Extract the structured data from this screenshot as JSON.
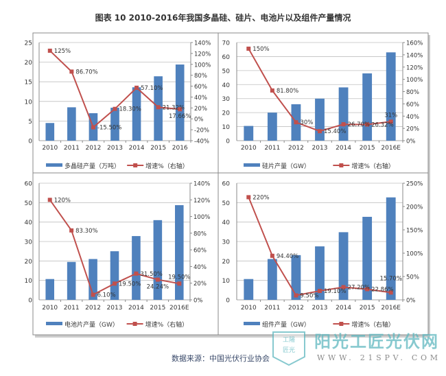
{
  "title": "图表 10  2010-2016年我国多晶硅、硅片、电池片以及组件产量情况",
  "source": "数据来源：中国光伏行业协会",
  "watermark": {
    "name": "阳光工匠光伏网",
    "url": "WWW. 21SPV. COM",
    "badge": [
      "工陽",
      "匠光"
    ]
  },
  "colors": {
    "bar": "#4f81bd",
    "line": "#c0504d",
    "grid": "#bfbfbf"
  },
  "chart_data": [
    {
      "type": "bar+line",
      "categories": [
        "2010",
        "2011",
        "2012",
        "2013",
        "2014",
        "2015",
        "2016"
      ],
      "series": [
        {
          "name": "多晶硅产量（万吨）",
          "type": "bar",
          "axis": "left",
          "values": [
            4.5,
            8.5,
            7.0,
            8.4,
            13.6,
            16.4,
            19.4
          ]
        },
        {
          "name": "增速%（右轴）",
          "type": "line",
          "axis": "right",
          "values": [
            125,
            86.7,
            -15.5,
            18.3,
            57.1,
            21.32,
            17.66
          ],
          "labels": [
            "125%",
            "86.70%",
            "-15.50%",
            "18.30%",
            "57.10%",
            "21.32%",
            "17.66%"
          ]
        }
      ],
      "ylim": [
        0,
        25
      ],
      "yticks": [
        "0",
        "5",
        "10",
        "15",
        "20",
        "25"
      ],
      "y2lim": [
        -40,
        140
      ],
      "y2ticks": [
        "-40%",
        "-20%",
        "0%",
        "20%",
        "40%",
        "60%",
        "80%",
        "100%",
        "120%",
        "140%"
      ],
      "grid": true,
      "legend": "bottom"
    },
    {
      "type": "bar+line",
      "categories": [
        "2010",
        "2011",
        "2012",
        "2013",
        "2014",
        "2015",
        "2016E"
      ],
      "series": [
        {
          "name": "硅片产量（GW）",
          "type": "bar",
          "axis": "left",
          "values": [
            10.5,
            20,
            26,
            30,
            38,
            48,
            63
          ]
        },
        {
          "name": "增速%（右轴）",
          "type": "line",
          "axis": "right",
          "values": [
            150,
            81.8,
            30,
            15.4,
            26.7,
            26.32,
            31
          ],
          "labels": [
            "150%",
            "81.80%",
            "30%",
            "15.40%",
            "26.70%",
            "26.32%",
            "31%"
          ]
        }
      ],
      "ylim": [
        0,
        70
      ],
      "yticks": [
        "0",
        "10",
        "20",
        "30",
        "40",
        "50",
        "60",
        "70"
      ],
      "y2lim": [
        0,
        160
      ],
      "y2ticks": [
        "0%",
        "20%",
        "40%",
        "60%",
        "80%",
        "100%",
        "120%",
        "140%",
        "160%"
      ],
      "grid": true,
      "legend": "bottom"
    },
    {
      "type": "bar+line",
      "categories": [
        "2010",
        "2011",
        "2012",
        "2013",
        "2014",
        "2015",
        "2016E"
      ],
      "series": [
        {
          "name": "电池片产量（GW）",
          "type": "bar",
          "axis": "left",
          "values": [
            10.7,
            19.5,
            21,
            25,
            32.8,
            41,
            48.7
          ]
        },
        {
          "name": "增速%（右轴）",
          "type": "line",
          "axis": "right",
          "values": [
            120,
            83.3,
            6.1,
            19.5,
            31.5,
            24.24,
            19.5
          ],
          "labels": [
            "120%",
            "83.30%",
            "6.10%",
            "19.50%",
            "31.50%",
            "24.24%",
            "19.50%"
          ]
        }
      ],
      "ylim": [
        0,
        60
      ],
      "yticks": [
        "0",
        "10",
        "20",
        "30",
        "40",
        "50",
        "60"
      ],
      "y2lim": [
        0,
        140
      ],
      "y2ticks": [
        "0%",
        "20%",
        "40%",
        "60%",
        "80%",
        "100%",
        "120%",
        "140%"
      ],
      "grid": true,
      "legend": "bottom"
    },
    {
      "type": "bar+line",
      "categories": [
        "2010",
        "2011",
        "2012",
        "2013",
        "2014",
        "2015",
        "2016E"
      ],
      "series": [
        {
          "name": "组件产量（GW）",
          "type": "bar",
          "axis": "left",
          "values": [
            10.7,
            21,
            23,
            27.5,
            34.8,
            42.7,
            52.7
          ]
        },
        {
          "name": "增速%（右轴）",
          "type": "line",
          "axis": "right",
          "values": [
            220,
            94.4,
            9.5,
            19.1,
            27.2,
            22.86,
            15.7
          ],
          "labels": [
            "220%",
            "94.40%",
            "9.50%",
            "19.10%",
            "27.20%",
            "22.86%",
            "15.70%"
          ]
        }
      ],
      "ylim": [
        0,
        60
      ],
      "yticks": [
        "0",
        "10",
        "20",
        "30",
        "40",
        "50",
        "60"
      ],
      "y2lim": [
        0,
        250
      ],
      "y2ticks": [
        "0%",
        "50%",
        "100%",
        "150%",
        "200%",
        "250%"
      ],
      "grid": true,
      "legend": "bottom"
    }
  ]
}
